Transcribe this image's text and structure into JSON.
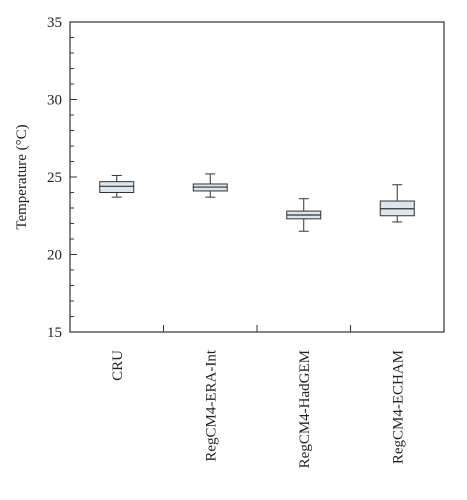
{
  "chart_data": {
    "type": "box",
    "ylabel": "Temperature (°C)",
    "xlabel": "",
    "ylim": [
      15,
      35
    ],
    "yticks": [
      15,
      20,
      25,
      30,
      35
    ],
    "minor_ytick_step": 1,
    "categories": [
      "CRU",
      "RegCM4-ERA-Int",
      "RegCM4-HadGEM",
      "RegCM4-ECHAM"
    ],
    "boxes": [
      {
        "min": 23.7,
        "q1": 24.0,
        "median": 24.4,
        "q3": 24.7,
        "max": 25.1
      },
      {
        "min": 23.7,
        "q1": 24.1,
        "median": 24.35,
        "q3": 24.55,
        "max": 25.2
      },
      {
        "min": 21.5,
        "q1": 22.3,
        "median": 22.55,
        "q3": 22.8,
        "max": 23.6
      },
      {
        "min": 22.1,
        "q1": 22.5,
        "median": 22.95,
        "q3": 23.45,
        "max": 24.5
      }
    ],
    "box_fill": "#dce6f0",
    "line_color": "#333333",
    "grid": false
  }
}
